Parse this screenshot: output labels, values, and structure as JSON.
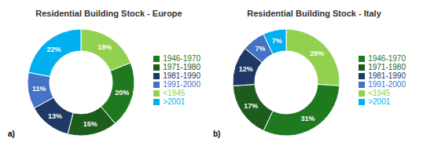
{
  "chart_data": [
    {
      "type": "pie",
      "title": "Residential Building Stock - Europe",
      "categories": [
        "<1945",
        "1946-1970",
        "1971-1980",
        "1981-1990",
        "1991-2000",
        ">2001"
      ],
      "values": [
        19,
        20,
        15,
        13,
        11,
        22
      ],
      "value_labels": [
        "19%",
        "20%",
        "15%",
        "13%",
        "11%",
        "22%"
      ],
      "colors": [
        "#92D050",
        "#1F7A1F",
        "#1E5C1E",
        "#1F3864",
        "#4472C4",
        "#00B0F0"
      ],
      "data_labels": true,
      "legend": "right",
      "annotations": [
        "a)"
      ]
    },
    {
      "type": "pie",
      "title": "Residential Building Stock - Italy",
      "categories": [
        "<1945",
        "1946-1970",
        "1971-1980",
        "1981-1990",
        "1991-2000",
        ">2001"
      ],
      "values": [
        26,
        31,
        17,
        12,
        7,
        7
      ],
      "value_labels": [
        "26%",
        "31%",
        "17%",
        "12%",
        "7%",
        "7%"
      ],
      "colors": [
        "#92D050",
        "#1F7A1F",
        "#1E5C1E",
        "#1F3864",
        "#4472C4",
        "#00B0F0"
      ],
      "data_labels": true,
      "legend": "right",
      "annotations": [
        "b)"
      ]
    }
  ]
}
